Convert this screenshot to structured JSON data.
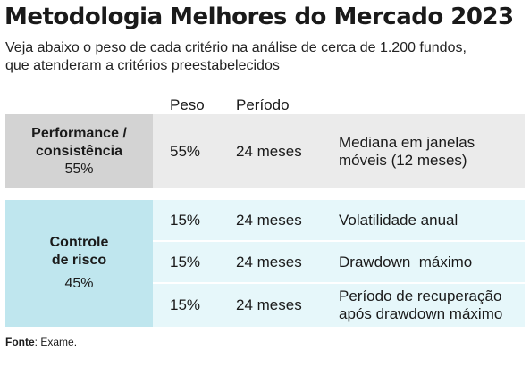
{
  "title": "Metodologia Melhores do Mercado 2023",
  "subtitle_line1": "Veja abaixo o peso de cada critério na análise de cerca de 1.200 fundos,",
  "subtitle_line2": "que atenderam a critérios preestabelecidos",
  "columns": {
    "peso": "Peso",
    "periodo": "Período"
  },
  "groups": [
    {
      "name_line1": "Performance /",
      "name_line2": "consistência",
      "weight": "55%",
      "color": "#d3d3d3",
      "rows": [
        {
          "peso": "55%",
          "periodo": "24 meses",
          "desc_line1": "Mediana em janelas",
          "desc_line2": "móveis (12 meses)"
        }
      ]
    },
    {
      "name_line1": "Controle",
      "name_line2": "de risco",
      "weight": "45%",
      "color": "#bfe6ee",
      "rows": [
        {
          "peso": "15%",
          "periodo": "24 meses",
          "desc_line1": "Volatilidade anual",
          "desc_line2": ""
        },
        {
          "peso": "15%",
          "periodo": "24 meses",
          "desc_line1": "Drawdown  máximo",
          "desc_line2": ""
        },
        {
          "peso": "15%",
          "periodo": "24 meses",
          "desc_line1": "Período de recuperação",
          "desc_line2": "após drawdown máximo"
        }
      ]
    }
  ],
  "source": {
    "label": "Fonte",
    "text": ": Exame."
  }
}
